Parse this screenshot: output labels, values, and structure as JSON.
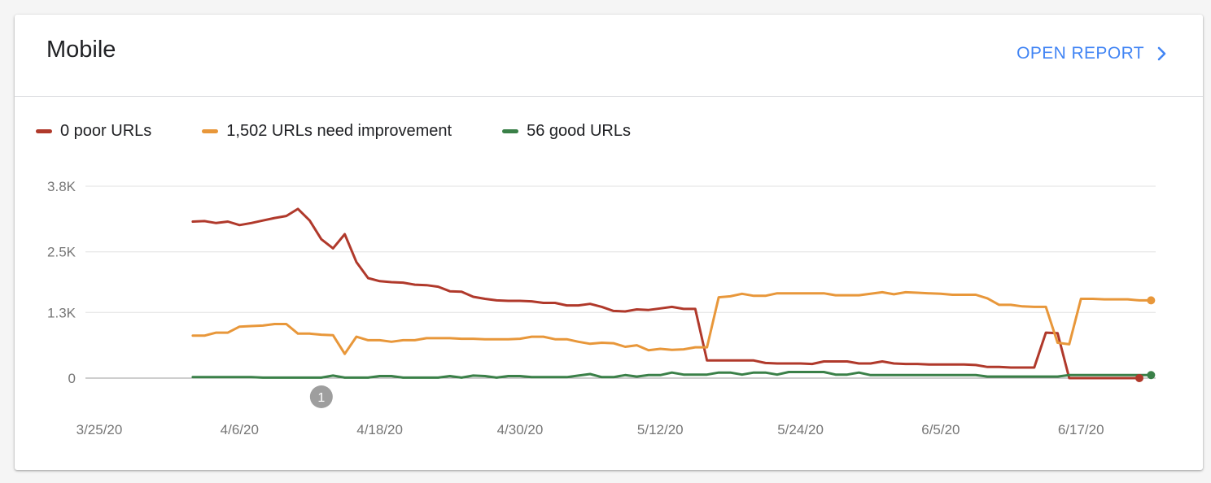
{
  "card": {
    "title": "Mobile",
    "open_report_label": "OPEN REPORT",
    "chevron_icon": "chevron-right-icon",
    "accent_color": "#4285f4"
  },
  "legend": [
    {
      "label": "0 poor URLs",
      "color": "#b0392b"
    },
    {
      "label": "1,502 URLs need improvement",
      "color": "#e8973a"
    },
    {
      "label": "56 good URLs",
      "color": "#3a8048"
    }
  ],
  "chart_data": {
    "type": "line",
    "y_ticks": [
      {
        "label": "3.8K",
        "value": 3800
      },
      {
        "label": "2.5K",
        "value": 2500
      },
      {
        "label": "1.3K",
        "value": 1300
      },
      {
        "label": "0",
        "value": 0
      }
    ],
    "ylim": [
      0,
      3800
    ],
    "x_ticks": [
      {
        "label": "3/25/20",
        "day": 0
      },
      {
        "label": "4/6/20",
        "day": 12
      },
      {
        "label": "4/18/20",
        "day": 24
      },
      {
        "label": "4/30/20",
        "day": 36
      },
      {
        "label": "5/12/20",
        "day": 48
      },
      {
        "label": "5/24/20",
        "day": 60
      },
      {
        "label": "6/5/20",
        "day": 72
      },
      {
        "label": "6/17/20",
        "day": 84
      }
    ],
    "annotation": {
      "label": "1",
      "day": 19
    },
    "grid": true,
    "legend_position": "top-left",
    "series": [
      {
        "name": "0 poor URLs",
        "color": "#b0392b",
        "values": [
          [
            8,
            3100
          ],
          [
            9,
            3110
          ],
          [
            10,
            3070
          ],
          [
            11,
            3100
          ],
          [
            12,
            3030
          ],
          [
            13,
            3070
          ],
          [
            14,
            3120
          ],
          [
            15,
            3170
          ],
          [
            16,
            3210
          ],
          [
            17,
            3350
          ],
          [
            18,
            3120
          ],
          [
            19,
            2750
          ],
          [
            20,
            2570
          ],
          [
            21,
            2850
          ],
          [
            22,
            2300
          ],
          [
            23,
            1980
          ],
          [
            24,
            1920
          ],
          [
            25,
            1900
          ],
          [
            26,
            1890
          ],
          [
            27,
            1850
          ],
          [
            28,
            1840
          ],
          [
            29,
            1810
          ],
          [
            30,
            1720
          ],
          [
            31,
            1710
          ],
          [
            32,
            1610
          ],
          [
            33,
            1570
          ],
          [
            34,
            1540
          ],
          [
            35,
            1530
          ],
          [
            36,
            1530
          ],
          [
            37,
            1520
          ],
          [
            38,
            1490
          ],
          [
            39,
            1490
          ],
          [
            40,
            1440
          ],
          [
            41,
            1440
          ],
          [
            42,
            1470
          ],
          [
            43,
            1410
          ],
          [
            44,
            1330
          ],
          [
            45,
            1320
          ],
          [
            46,
            1360
          ],
          [
            47,
            1350
          ],
          [
            48,
            1380
          ],
          [
            49,
            1410
          ],
          [
            50,
            1370
          ],
          [
            51,
            1370
          ],
          [
            52,
            350
          ],
          [
            53,
            350
          ],
          [
            54,
            350
          ],
          [
            55,
            350
          ],
          [
            56,
            350
          ],
          [
            57,
            300
          ],
          [
            58,
            290
          ],
          [
            59,
            290
          ],
          [
            60,
            290
          ],
          [
            61,
            280
          ],
          [
            62,
            330
          ],
          [
            63,
            330
          ],
          [
            64,
            330
          ],
          [
            65,
            290
          ],
          [
            66,
            290
          ],
          [
            67,
            330
          ],
          [
            68,
            290
          ],
          [
            69,
            280
          ],
          [
            70,
            280
          ],
          [
            71,
            270
          ],
          [
            72,
            270
          ],
          [
            73,
            270
          ],
          [
            74,
            270
          ],
          [
            75,
            260
          ],
          [
            76,
            220
          ],
          [
            77,
            220
          ],
          [
            78,
            210
          ],
          [
            79,
            210
          ],
          [
            80,
            210
          ],
          [
            81,
            900
          ],
          [
            82,
            890
          ],
          [
            83,
            0
          ],
          [
            84,
            0
          ],
          [
            85,
            0
          ],
          [
            86,
            0
          ],
          [
            87,
            0
          ],
          [
            88,
            0
          ],
          [
            89,
            0
          ]
        ]
      },
      {
        "name": "1,502 URLs need improvement",
        "color": "#e8973a",
        "values": [
          [
            8,
            840
          ],
          [
            9,
            840
          ],
          [
            10,
            900
          ],
          [
            11,
            900
          ],
          [
            12,
            1020
          ],
          [
            13,
            1030
          ],
          [
            14,
            1040
          ],
          [
            15,
            1070
          ],
          [
            16,
            1070
          ],
          [
            17,
            880
          ],
          [
            18,
            880
          ],
          [
            19,
            860
          ],
          [
            20,
            850
          ],
          [
            21,
            480
          ],
          [
            22,
            820
          ],
          [
            23,
            750
          ],
          [
            24,
            750
          ],
          [
            25,
            720
          ],
          [
            26,
            750
          ],
          [
            27,
            750
          ],
          [
            28,
            790
          ],
          [
            29,
            790
          ],
          [
            30,
            790
          ],
          [
            31,
            780
          ],
          [
            32,
            780
          ],
          [
            33,
            770
          ],
          [
            34,
            770
          ],
          [
            35,
            770
          ],
          [
            36,
            780
          ],
          [
            37,
            820
          ],
          [
            38,
            820
          ],
          [
            39,
            770
          ],
          [
            40,
            770
          ],
          [
            41,
            720
          ],
          [
            42,
            680
          ],
          [
            43,
            700
          ],
          [
            44,
            690
          ],
          [
            45,
            620
          ],
          [
            46,
            650
          ],
          [
            47,
            550
          ],
          [
            48,
            580
          ],
          [
            49,
            560
          ],
          [
            50,
            570
          ],
          [
            51,
            610
          ],
          [
            52,
            610
          ],
          [
            53,
            1600
          ],
          [
            54,
            1620
          ],
          [
            55,
            1670
          ],
          [
            56,
            1630
          ],
          [
            57,
            1630
          ],
          [
            58,
            1680
          ],
          [
            59,
            1680
          ],
          [
            60,
            1680
          ],
          [
            61,
            1680
          ],
          [
            62,
            1680
          ],
          [
            63,
            1640
          ],
          [
            64,
            1640
          ],
          [
            65,
            1640
          ],
          [
            66,
            1670
          ],
          [
            67,
            1700
          ],
          [
            68,
            1660
          ],
          [
            69,
            1700
          ],
          [
            70,
            1690
          ],
          [
            71,
            1680
          ],
          [
            72,
            1670
          ],
          [
            73,
            1650
          ],
          [
            74,
            1650
          ],
          [
            75,
            1650
          ],
          [
            76,
            1580
          ],
          [
            77,
            1450
          ],
          [
            78,
            1450
          ],
          [
            79,
            1420
          ],
          [
            80,
            1410
          ],
          [
            81,
            1410
          ],
          [
            82,
            700
          ],
          [
            83,
            670
          ],
          [
            84,
            1570
          ],
          [
            85,
            1570
          ],
          [
            86,
            1560
          ],
          [
            87,
            1560
          ],
          [
            88,
            1560
          ],
          [
            89,
            1540
          ],
          [
            90,
            1540
          ]
        ]
      },
      {
        "name": "56 good URLs",
        "color": "#3a8048",
        "values": [
          [
            8,
            20
          ],
          [
            9,
            20
          ],
          [
            10,
            20
          ],
          [
            11,
            20
          ],
          [
            12,
            20
          ],
          [
            13,
            20
          ],
          [
            14,
            10
          ],
          [
            15,
            10
          ],
          [
            16,
            10
          ],
          [
            17,
            10
          ],
          [
            18,
            10
          ],
          [
            19,
            10
          ],
          [
            20,
            50
          ],
          [
            21,
            10
          ],
          [
            22,
            10
          ],
          [
            23,
            10
          ],
          [
            24,
            40
          ],
          [
            25,
            40
          ],
          [
            26,
            10
          ],
          [
            27,
            10
          ],
          [
            28,
            10
          ],
          [
            29,
            10
          ],
          [
            30,
            40
          ],
          [
            31,
            10
          ],
          [
            32,
            50
          ],
          [
            33,
            40
          ],
          [
            34,
            10
          ],
          [
            35,
            40
          ],
          [
            36,
            40
          ],
          [
            37,
            20
          ],
          [
            38,
            20
          ],
          [
            39,
            20
          ],
          [
            40,
            20
          ],
          [
            41,
            50
          ],
          [
            42,
            80
          ],
          [
            43,
            20
          ],
          [
            44,
            20
          ],
          [
            45,
            60
          ],
          [
            46,
            30
          ],
          [
            47,
            60
          ],
          [
            48,
            60
          ],
          [
            49,
            110
          ],
          [
            50,
            70
          ],
          [
            51,
            70
          ],
          [
            52,
            70
          ],
          [
            53,
            110
          ],
          [
            54,
            110
          ],
          [
            55,
            70
          ],
          [
            56,
            110
          ],
          [
            57,
            110
          ],
          [
            58,
            70
          ],
          [
            59,
            120
          ],
          [
            60,
            120
          ],
          [
            61,
            120
          ],
          [
            62,
            120
          ],
          [
            63,
            70
          ],
          [
            64,
            70
          ],
          [
            65,
            110
          ],
          [
            66,
            60
          ],
          [
            67,
            60
          ],
          [
            68,
            60
          ],
          [
            69,
            60
          ],
          [
            70,
            60
          ],
          [
            71,
            60
          ],
          [
            72,
            60
          ],
          [
            73,
            60
          ],
          [
            74,
            60
          ],
          [
            75,
            60
          ],
          [
            76,
            30
          ],
          [
            77,
            30
          ],
          [
            78,
            30
          ],
          [
            79,
            30
          ],
          [
            80,
            30
          ],
          [
            81,
            30
          ],
          [
            82,
            30
          ],
          [
            83,
            60
          ],
          [
            84,
            60
          ],
          [
            85,
            60
          ],
          [
            86,
            60
          ],
          [
            87,
            60
          ],
          [
            88,
            60
          ],
          [
            89,
            60
          ],
          [
            90,
            60
          ]
        ]
      }
    ]
  }
}
